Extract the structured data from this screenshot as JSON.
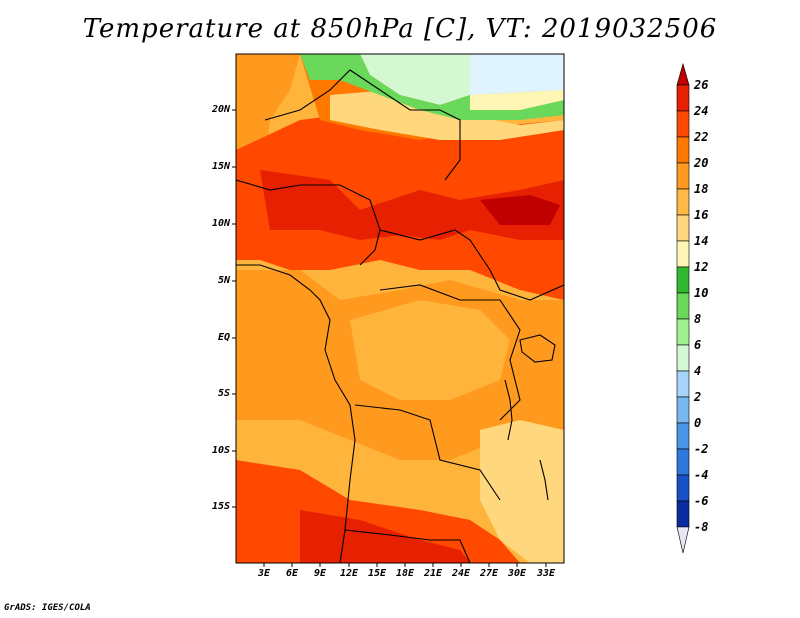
{
  "title": "Temperature at 850hPa [C], VT: 2019032506",
  "credit": "GrADS: IGES/COLA",
  "axes": {
    "lat_ticks": [
      "20N",
      "15N",
      "10N",
      "5N",
      "EQ",
      "5S",
      "10S",
      "15S"
    ],
    "lon_ticks": [
      "3E",
      "6E",
      "9E",
      "12E",
      "15E",
      "18E",
      "21E",
      "24E",
      "27E",
      "30E",
      "33E"
    ]
  },
  "colorbar": {
    "levels": [
      "26",
      "24",
      "22",
      "20",
      "18",
      "16",
      "14",
      "12",
      "10",
      "8",
      "6",
      "4",
      "2",
      "0",
      "-2",
      "-4",
      "-6",
      "-8"
    ],
    "colors": [
      "#c00000",
      "#e62000",
      "#ff4800",
      "#ff7800",
      "#ff9a1e",
      "#ffb946",
      "#ffd77d",
      "#fff5b4",
      "#30b830",
      "#6ad85a",
      "#a0f090",
      "#d4f8d2",
      "#dff4ff",
      "#a8d4fa",
      "#78b8f0",
      "#4a96e6",
      "#2e78dc",
      "#1850c8",
      "#0a2ca0",
      "#051466",
      "#e6e6f5"
    ]
  },
  "map": {
    "background_color": "#ffb43c",
    "regions": [
      {
        "name": "north-green-band",
        "color": "#6ad85a"
      },
      {
        "name": "north-pale-band",
        "color": "#d4f8d2"
      },
      {
        "name": "sahel-hot-zone",
        "color": "#ff4800"
      },
      {
        "name": "sahel-core",
        "color": "#e62000"
      },
      {
        "name": "congo-mid",
        "color": "#ff9a1e"
      },
      {
        "name": "angola-hot",
        "color": "#ff4800"
      },
      {
        "name": "east-highlands",
        "color": "#ffd77d"
      }
    ]
  }
}
